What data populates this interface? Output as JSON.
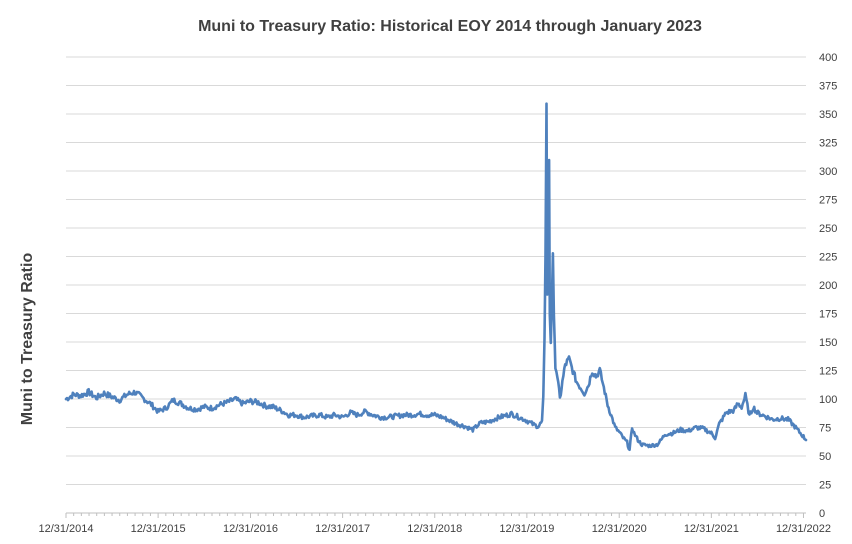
{
  "chart_data": {
    "type": "line",
    "title": "Muni to Treasury Ratio: Historical EOY 2014 through January 2023",
    "ylabel": "Muni to Treasury Ratio",
    "xlabel": "",
    "ylim": [
      0,
      400
    ],
    "yticks": [
      0,
      25,
      50,
      75,
      100,
      125,
      150,
      175,
      200,
      225,
      250,
      275,
      300,
      325,
      350,
      375,
      400
    ],
    "yticks_position": "right",
    "xlim": [
      "2014-12-31",
      "2023-01-10"
    ],
    "xticks": [
      "12/31/2014",
      "12/31/2015",
      "12/31/2016",
      "12/31/2017",
      "12/31/2018",
      "12/31/2019",
      "12/31/2020",
      "12/31/2021",
      "12/31/2022"
    ],
    "xtick_dates": [
      "2014-12-31",
      "2015-12-31",
      "2016-12-31",
      "2017-12-31",
      "2018-12-31",
      "2019-12-31",
      "2020-12-31",
      "2021-12-31",
      "2022-12-31"
    ],
    "grid": "horizontal",
    "legend": "none",
    "series": [
      {
        "color": "#4F81BD",
        "points": [
          [
            "2014-12-31",
            100
          ],
          [
            "2015-01-31",
            104
          ],
          [
            "2015-02-28",
            103
          ],
          [
            "2015-03-31",
            106
          ],
          [
            "2015-04-30",
            101
          ],
          [
            "2015-05-31",
            105
          ],
          [
            "2015-06-30",
            102
          ],
          [
            "2015-07-31",
            99
          ],
          [
            "2015-08-31",
            104
          ],
          [
            "2015-09-30",
            106
          ],
          [
            "2015-10-31",
            101
          ],
          [
            "2015-11-30",
            96
          ],
          [
            "2015-12-31",
            89
          ],
          [
            "2016-01-31",
            92
          ],
          [
            "2016-02-29",
            99
          ],
          [
            "2016-03-31",
            96
          ],
          [
            "2016-04-30",
            92
          ],
          [
            "2016-05-31",
            91
          ],
          [
            "2016-06-30",
            93
          ],
          [
            "2016-07-31",
            92
          ],
          [
            "2016-08-31",
            95
          ],
          [
            "2016-09-30",
            97
          ],
          [
            "2016-10-31",
            100
          ],
          [
            "2016-11-30",
            96
          ],
          [
            "2016-12-31",
            98
          ],
          [
            "2017-01-31",
            97
          ],
          [
            "2017-02-28",
            94
          ],
          [
            "2017-03-31",
            93
          ],
          [
            "2017-04-30",
            90
          ],
          [
            "2017-05-31",
            86
          ],
          [
            "2017-06-30",
            86
          ],
          [
            "2017-07-31",
            84
          ],
          [
            "2017-08-31",
            85
          ],
          [
            "2017-09-30",
            86
          ],
          [
            "2017-10-31",
            84
          ],
          [
            "2017-11-30",
            86
          ],
          [
            "2017-12-31",
            84
          ],
          [
            "2018-01-31",
            88
          ],
          [
            "2018-02-28",
            86
          ],
          [
            "2018-03-31",
            89
          ],
          [
            "2018-04-30",
            86
          ],
          [
            "2018-05-31",
            84
          ],
          [
            "2018-06-30",
            84
          ],
          [
            "2018-07-31",
            85
          ],
          [
            "2018-08-31",
            86
          ],
          [
            "2018-09-30",
            86
          ],
          [
            "2018-10-31",
            87
          ],
          [
            "2018-11-30",
            86
          ],
          [
            "2018-12-31",
            86
          ],
          [
            "2019-01-31",
            84
          ],
          [
            "2019-02-28",
            81
          ],
          [
            "2019-03-31",
            78
          ],
          [
            "2019-04-30",
            76
          ],
          [
            "2019-05-31",
            73
          ],
          [
            "2019-06-30",
            79
          ],
          [
            "2019-07-31",
            80
          ],
          [
            "2019-08-31",
            83
          ],
          [
            "2019-09-30",
            85
          ],
          [
            "2019-10-31",
            87
          ],
          [
            "2019-11-30",
            84
          ],
          [
            "2019-12-31",
            81
          ],
          [
            "2020-01-31",
            77
          ],
          [
            "2020-02-15",
            76
          ],
          [
            "2020-02-29",
            80
          ],
          [
            "2020-03-05",
            100
          ],
          [
            "2020-03-10",
            150
          ],
          [
            "2020-03-14",
            230
          ],
          [
            "2020-03-18",
            365
          ],
          [
            "2020-03-21",
            190
          ],
          [
            "2020-03-25",
            240
          ],
          [
            "2020-03-28",
            305
          ],
          [
            "2020-03-31",
            175
          ],
          [
            "2020-04-04",
            150
          ],
          [
            "2020-04-08",
            185
          ],
          [
            "2020-04-12",
            230
          ],
          [
            "2020-04-16",
            170
          ],
          [
            "2020-04-22",
            130
          ],
          [
            "2020-04-30",
            120
          ],
          [
            "2020-05-10",
            100
          ],
          [
            "2020-05-20",
            115
          ],
          [
            "2020-05-31",
            130
          ],
          [
            "2020-06-15",
            135
          ],
          [
            "2020-06-30",
            125
          ],
          [
            "2020-07-15",
            115
          ],
          [
            "2020-07-31",
            110
          ],
          [
            "2020-08-15",
            105
          ],
          [
            "2020-08-31",
            112
          ],
          [
            "2020-09-15",
            125
          ],
          [
            "2020-09-30",
            120
          ],
          [
            "2020-10-15",
            125
          ],
          [
            "2020-10-31",
            110
          ],
          [
            "2020-11-15",
            95
          ],
          [
            "2020-11-30",
            85
          ],
          [
            "2020-12-15",
            75
          ],
          [
            "2020-12-31",
            71
          ],
          [
            "2021-01-15",
            66
          ],
          [
            "2021-01-31",
            62
          ],
          [
            "2021-02-10",
            55
          ],
          [
            "2021-02-20",
            75
          ],
          [
            "2021-02-28",
            70
          ],
          [
            "2021-03-15",
            64
          ],
          [
            "2021-03-31",
            60
          ],
          [
            "2021-04-30",
            59
          ],
          [
            "2021-05-31",
            60
          ],
          [
            "2021-06-15",
            64
          ],
          [
            "2021-06-30",
            69
          ],
          [
            "2021-07-31",
            70
          ],
          [
            "2021-08-31",
            73
          ],
          [
            "2021-09-30",
            72
          ],
          [
            "2021-10-31",
            75
          ],
          [
            "2021-11-30",
            74
          ],
          [
            "2021-12-31",
            70
          ],
          [
            "2022-01-15",
            66
          ],
          [
            "2022-01-31",
            78
          ],
          [
            "2022-02-28",
            88
          ],
          [
            "2022-03-31",
            90
          ],
          [
            "2022-04-15",
            96
          ],
          [
            "2022-04-30",
            93
          ],
          [
            "2022-05-15",
            103
          ],
          [
            "2022-05-31",
            85
          ],
          [
            "2022-06-15",
            93
          ],
          [
            "2022-06-30",
            88
          ],
          [
            "2022-07-31",
            85
          ],
          [
            "2022-08-31",
            82
          ],
          [
            "2022-09-30",
            83
          ],
          [
            "2022-10-31",
            82
          ],
          [
            "2022-11-30",
            75
          ],
          [
            "2022-12-15",
            71
          ],
          [
            "2022-12-31",
            67
          ],
          [
            "2023-01-10",
            64
          ]
        ]
      }
    ]
  }
}
